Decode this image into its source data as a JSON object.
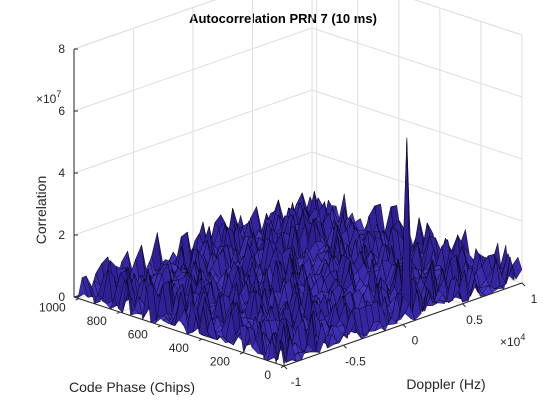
{
  "chart_data": {
    "type": "surface",
    "title": "Autocorrelation PRN 7 (10 ms)",
    "xlabel": "Code Phase (Chips)",
    "ylabel": "Doppler (Hz)",
    "zlabel": "Correlation",
    "z_exponent_label": "×10",
    "z_exponent": "7",
    "y_exponent_label": "×10",
    "y_exponent": "4",
    "xlim": [
      0,
      1023
    ],
    "ylim": [
      -10000,
      10000
    ],
    "zlim": [
      0,
      80000000
    ],
    "x_ticks": [
      0,
      200,
      400,
      600,
      800,
      1000
    ],
    "x_tick_labels": [
      "0",
      "200",
      "400",
      "600",
      "800",
      "1000"
    ],
    "y_ticks": [
      -10000,
      -5000,
      0,
      5000,
      10000
    ],
    "y_tick_labels": [
      "-1",
      "-0.5",
      "0",
      "0.5",
      "1"
    ],
    "z_ticks": [
      0,
      20000000,
      40000000,
      60000000,
      80000000
    ],
    "z_tick_labels": [
      "0",
      "2",
      "4",
      "6",
      "8"
    ],
    "grid": true,
    "surface_color": "#4a3ccc",
    "edge_color": "#000000",
    "noise_floor_peak": 12000000,
    "peak": {
      "code_phase": 40,
      "doppler": 1000,
      "correlation": 58000000
    }
  }
}
